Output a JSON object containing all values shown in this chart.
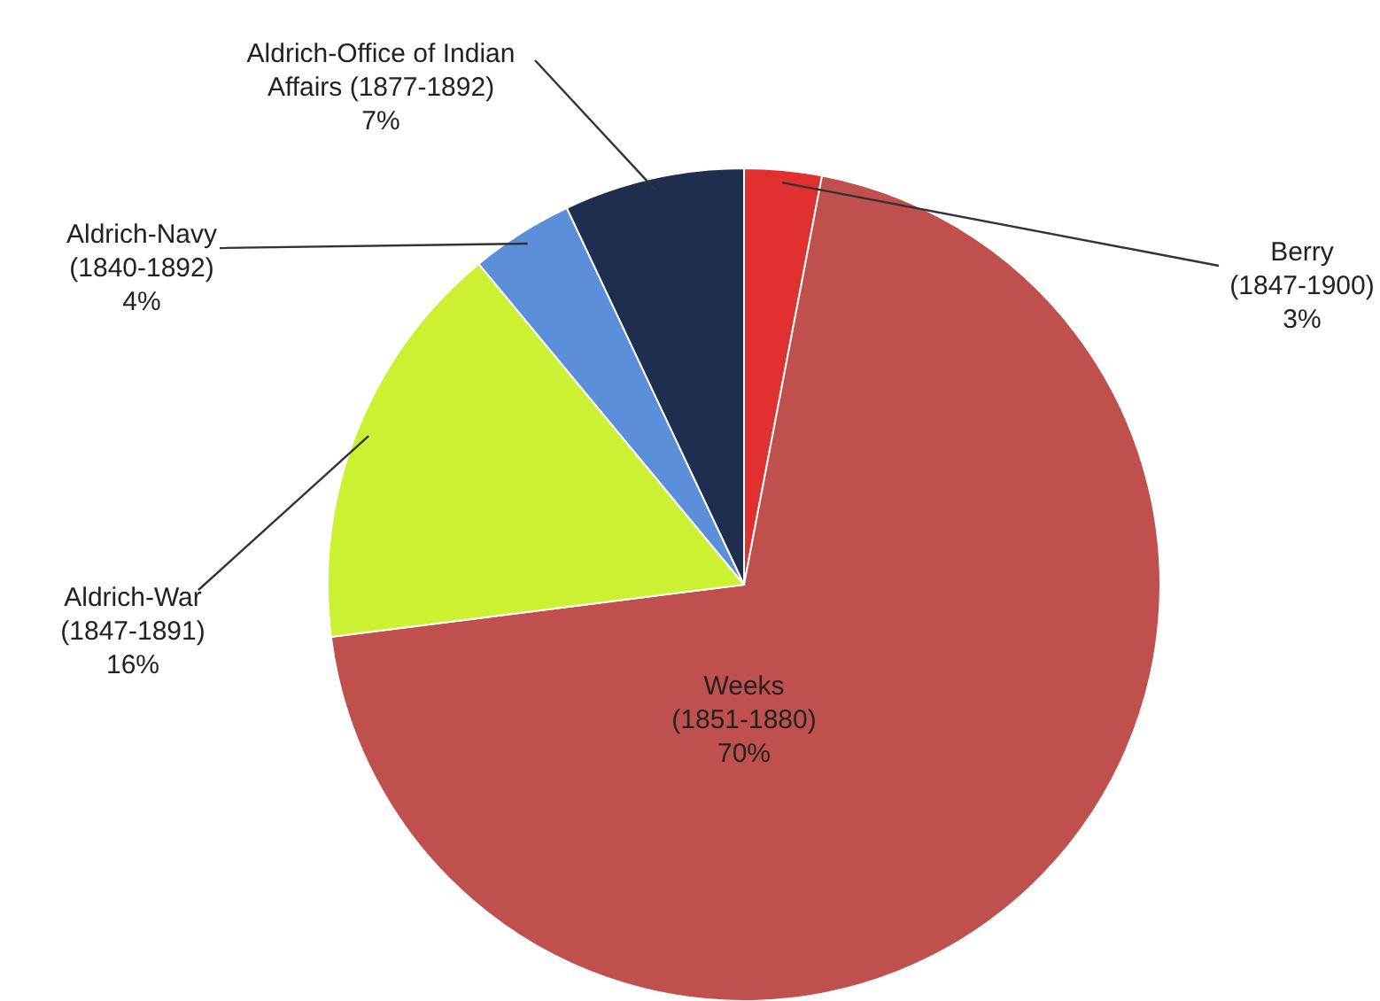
{
  "chart_data": {
    "type": "pie",
    "categories": [
      "Berry\n(1847-1900)",
      "Weeks\n(1851-1880)",
      "Aldrich-War\n(1847-1891)",
      "Aldrich-Navy\n(1840-1892)",
      "Aldrich-Office of Indian\nAffairs (1877-1892)"
    ],
    "values": [
      3,
      70,
      16,
      4,
      7
    ],
    "value_labels": [
      "3%",
      "70%",
      "16%",
      "4%",
      "7%"
    ],
    "colors": [
      "#e0302f",
      "#c0504d",
      "#ccf032",
      "#5b8fd9",
      "#1f2d4f"
    ]
  }
}
